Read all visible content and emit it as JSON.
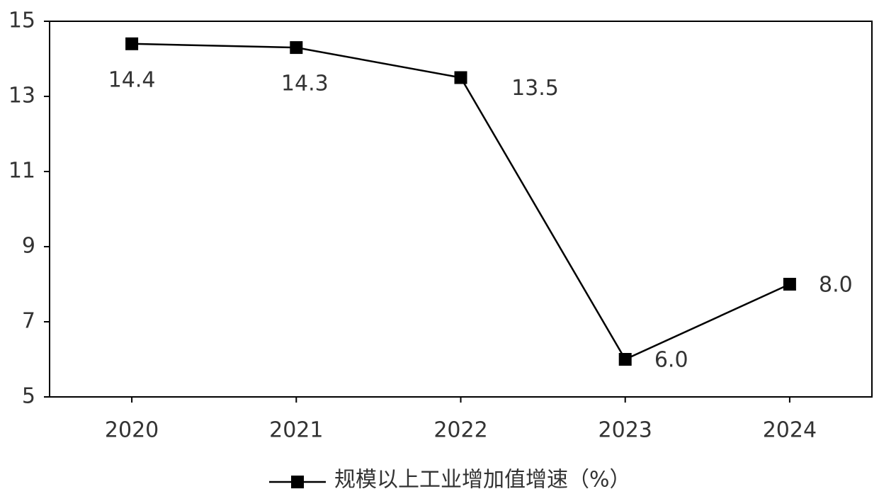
{
  "chart_data": {
    "type": "line",
    "categories": [
      "2020",
      "2021",
      "2022",
      "2023",
      "2024"
    ],
    "series": [
      {
        "name": "规模以上工业增加值增速（%）",
        "color": "#000000",
        "values": [
          14.4,
          14.3,
          13.5,
          6.0,
          8.0
        ],
        "value_labels": [
          "14.4",
          "14.3",
          "13.5",
          "6.0",
          "8.0"
        ]
      }
    ],
    "ylim": [
      5,
      15
    ],
    "yticks": [
      5,
      7,
      9,
      11,
      13,
      15
    ],
    "grid": false,
    "legend": "bottom"
  }
}
